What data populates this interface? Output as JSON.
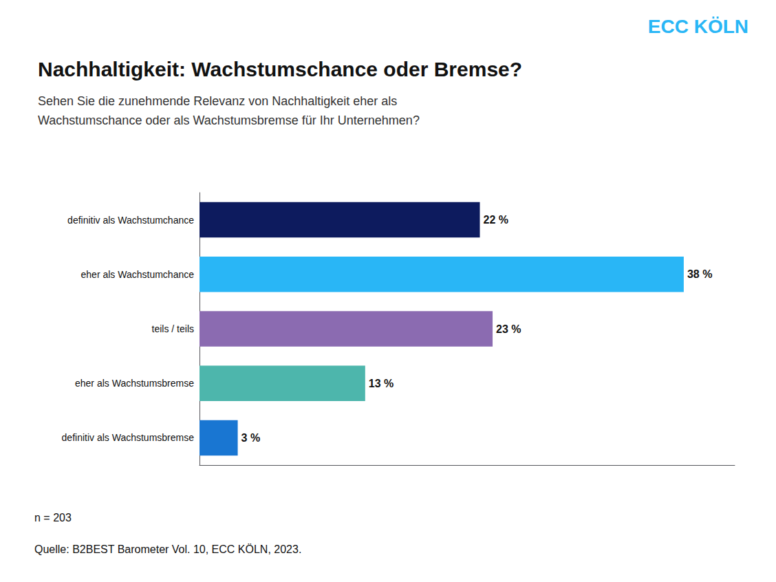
{
  "chart_data": {
    "type": "bar",
    "orientation": "horizontal",
    "title": "Nachhaltigkeit: Wachstumschance oder Bremse?",
    "subtitle": "Sehen Sie die zunehmende Relevanz von Nachhaltigkeit eher als\nWachstumschance oder als Wachstumsbremse für Ihr Unternehmen?",
    "categories": [
      "definitiv als Wachstumchance",
      "eher als Wachstumchance",
      "teils / teils",
      "eher als Wachstumsbremse",
      "definitiv als Wachstumsbremse"
    ],
    "values": [
      22,
      38,
      23,
      13,
      3
    ],
    "value_labels": [
      "22 %",
      "38 %",
      "23 %",
      "13 %",
      "3 %"
    ],
    "colors": [
      "#0d1b5e",
      "#29b6f6",
      "#8b6bb1",
      "#4db6ac",
      "#1976d2"
    ],
    "data_labels": true,
    "xlim": [
      0,
      42
    ],
    "tick_labels": "y",
    "grid": false,
    "annotations": [
      "ECC KÖLN",
      "n = 203",
      "Quelle: B2BEST Barometer Vol. 10, ECC KÖLN, 2023."
    ]
  }
}
